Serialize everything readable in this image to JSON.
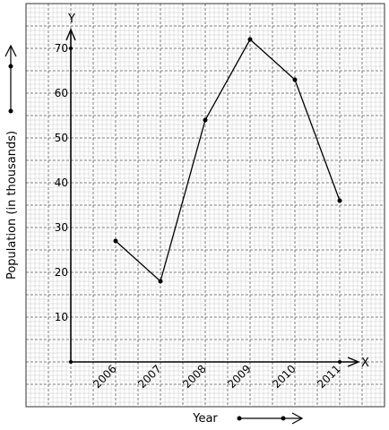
{
  "chart_data": {
    "type": "line",
    "title": "",
    "xlabel": "Year",
    "ylabel": "Population (in thousands)",
    "x_axis_letter": "X",
    "y_axis_letter": "Y",
    "categories": [
      "2006",
      "2007",
      "2008",
      "2009",
      "2010",
      "2011"
    ],
    "values": [
      27,
      18,
      54,
      72,
      63,
      36
    ],
    "y_ticks": [
      "10",
      "20",
      "30",
      "40",
      "50",
      "60",
      "70"
    ],
    "ylim": [
      0,
      70
    ],
    "grid": true,
    "colors": {
      "line": "#000000",
      "grid_minor": "#c8c8c8",
      "grid_major": "#555555"
    }
  }
}
